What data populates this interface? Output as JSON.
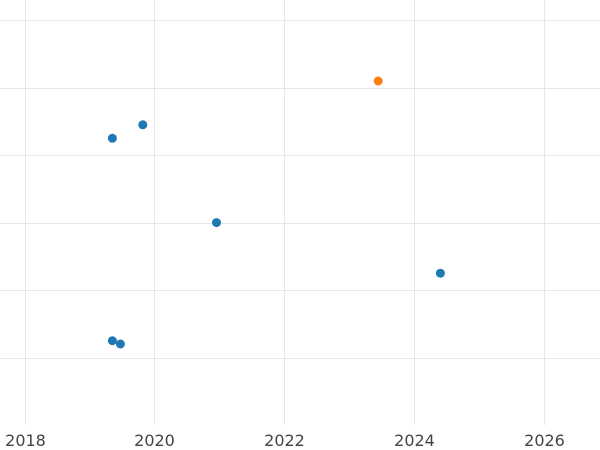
{
  "chart_data": {
    "type": "scatter",
    "title": "",
    "xlabel": "",
    "ylabel": "",
    "x_axis": "date",
    "xlim": [
      "2017-08-15",
      "2026-11-15"
    ],
    "ylim": [
      0,
      6.3
    ],
    "x_ticks": [
      {
        "value": "2018-01-01",
        "label": "2018"
      },
      {
        "value": "2020-01-01",
        "label": "2020"
      },
      {
        "value": "2022-01-01",
        "label": "2022"
      },
      {
        "value": "2024-01-01",
        "label": "2024"
      },
      {
        "value": "2026-01-01",
        "label": "2026"
      }
    ],
    "y_gridlines": [
      1,
      2,
      3,
      4,
      5,
      6
    ],
    "y_tick_labels_shown": false,
    "grid": true,
    "legend": "none",
    "series": [
      {
        "color": "#1f77b4",
        "points": [
          {
            "x": "2019-05-10",
            "y": 4.25
          },
          {
            "x": "2019-10-28",
            "y": 4.45
          },
          {
            "x": "2020-12-16",
            "y": 3.0
          },
          {
            "x": "2019-05-10",
            "y": 1.25
          },
          {
            "x": "2019-06-24",
            "y": 1.2
          },
          {
            "x": "2024-05-30",
            "y": 2.25
          }
        ]
      },
      {
        "color": "#ff7f0e",
        "points": [
          {
            "x": "2023-06-15",
            "y": 5.1
          }
        ]
      }
    ]
  }
}
